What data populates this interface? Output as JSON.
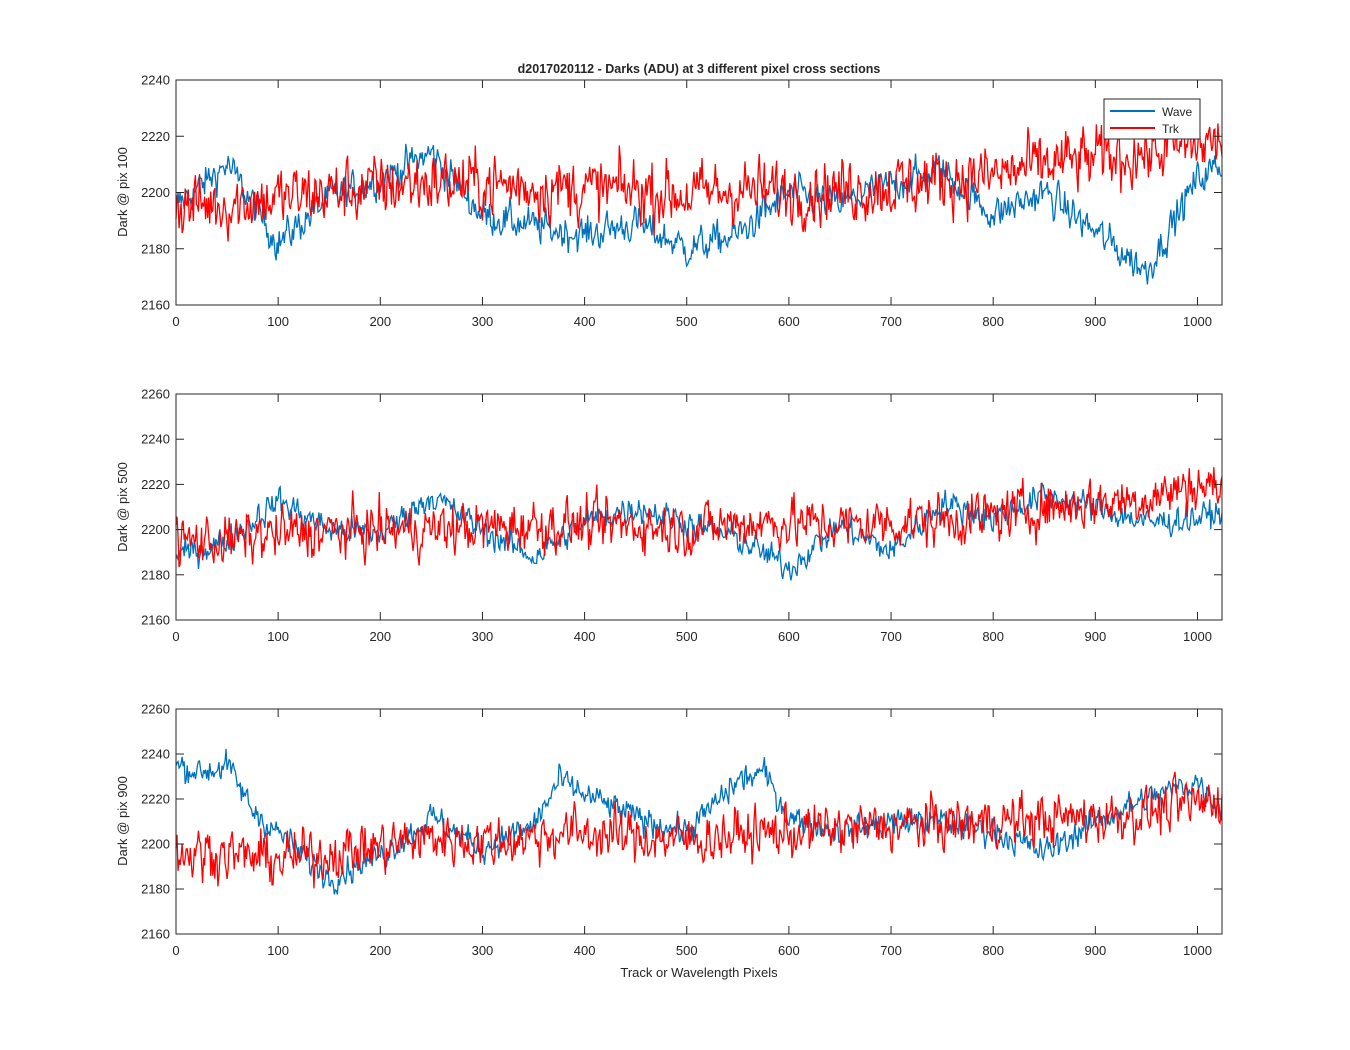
{
  "figure": {
    "title": "d2017020112 - Darks (ADU) at 3 different pixel cross sections",
    "xlabel": "Track or Wavelength Pixels"
  },
  "legend": {
    "items": [
      {
        "label": "Wave",
        "color": "#0072BD"
      },
      {
        "label": "Trk",
        "color": "#FF0000"
      }
    ],
    "placement": "top-right of first panel"
  },
  "chart_data": [
    {
      "type": "line",
      "title": "d2017020112 - Darks (ADU) at 3 different pixel cross sections",
      "xlabel": "",
      "ylabel": "Dark @ pix 100",
      "xlim": [
        0,
        1024
      ],
      "ylim": [
        2160,
        2240
      ],
      "xticks": [
        0,
        100,
        200,
        300,
        400,
        500,
        600,
        700,
        800,
        900,
        1000
      ],
      "yticks": [
        2160,
        2180,
        2200,
        2220,
        2240
      ],
      "x": [
        0,
        50,
        100,
        150,
        200,
        250,
        300,
        350,
        400,
        450,
        500,
        550,
        600,
        650,
        700,
        750,
        800,
        850,
        900,
        950,
        1000,
        1024
      ],
      "series": [
        {
          "name": "Wave",
          "color": "#0072BD",
          "values": [
            2195,
            2210,
            2182,
            2198,
            2205,
            2214,
            2192,
            2188,
            2185,
            2189,
            2180,
            2185,
            2200,
            2196,
            2203,
            2208,
            2192,
            2200,
            2186,
            2172,
            2205,
            2210
          ]
        },
        {
          "name": "Trk",
          "color": "#FF0000",
          "values": [
            2195,
            2196,
            2198,
            2200,
            2202,
            2204,
            2203,
            2202,
            2201,
            2201,
            2199,
            2201,
            2200,
            2201,
            2202,
            2205,
            2206,
            2210,
            2212,
            2214,
            2217,
            2218
          ]
        }
      ]
    },
    {
      "type": "line",
      "xlabel": "",
      "ylabel": "Dark @ pix 500",
      "xlim": [
        0,
        1024
      ],
      "ylim": [
        2160,
        2260
      ],
      "xticks": [
        0,
        100,
        200,
        300,
        400,
        500,
        600,
        700,
        800,
        900,
        1000
      ],
      "yticks": [
        2160,
        2180,
        2200,
        2220,
        2240,
        2260
      ],
      "x": [
        0,
        50,
        100,
        150,
        200,
        250,
        300,
        350,
        400,
        450,
        500,
        550,
        600,
        650,
        700,
        750,
        800,
        850,
        900,
        950,
        1000,
        1024
      ],
      "series": [
        {
          "name": "Wave",
          "color": "#0072BD",
          "values": [
            2188,
            2195,
            2213,
            2200,
            2198,
            2215,
            2200,
            2188,
            2203,
            2210,
            2203,
            2196,
            2183,
            2202,
            2190,
            2212,
            2205,
            2215,
            2210,
            2203,
            2205,
            2208
          ]
        },
        {
          "name": "Trk",
          "color": "#FF0000",
          "values": [
            2195,
            2195,
            2198,
            2199,
            2200,
            2200,
            2201,
            2202,
            2202,
            2202,
            2200,
            2203,
            2203,
            2202,
            2203,
            2204,
            2206,
            2210,
            2212,
            2214,
            2220,
            2218
          ]
        }
      ]
    },
    {
      "type": "line",
      "xlabel": "Track or Wavelength Pixels",
      "ylabel": "Dark @ pix 900",
      "xlim": [
        0,
        1024
      ],
      "ylim": [
        2160,
        2260
      ],
      "xticks": [
        0,
        100,
        200,
        300,
        400,
        500,
        600,
        700,
        800,
        900,
        1000
      ],
      "yticks": [
        2160,
        2180,
        2200,
        2220,
        2240,
        2260
      ],
      "x": [
        0,
        25,
        50,
        75,
        100,
        150,
        200,
        250,
        300,
        350,
        375,
        400,
        450,
        500,
        550,
        575,
        600,
        650,
        700,
        750,
        800,
        850,
        900,
        950,
        1000,
        1024
      ],
      "series": [
        {
          "name": "Wave",
          "color": "#0072BD",
          "values": [
            2235,
            2232,
            2235,
            2215,
            2205,
            2185,
            2195,
            2212,
            2198,
            2208,
            2228,
            2222,
            2212,
            2205,
            2228,
            2232,
            2212,
            2205,
            2210,
            2210,
            2206,
            2196,
            2210,
            2220,
            2228,
            2215
          ]
        },
        {
          "name": "Trk",
          "color": "#FF0000",
          "values": [
            2196,
            2196,
            2196,
            2194,
            2193,
            2196,
            2199,
            2203,
            2201,
            2203,
            2205,
            2205,
            2203,
            2202,
            2204,
            2205,
            2205,
            2207,
            2208,
            2209,
            2210,
            2211,
            2212,
            2214,
            2218,
            2220
          ]
        }
      ]
    }
  ]
}
